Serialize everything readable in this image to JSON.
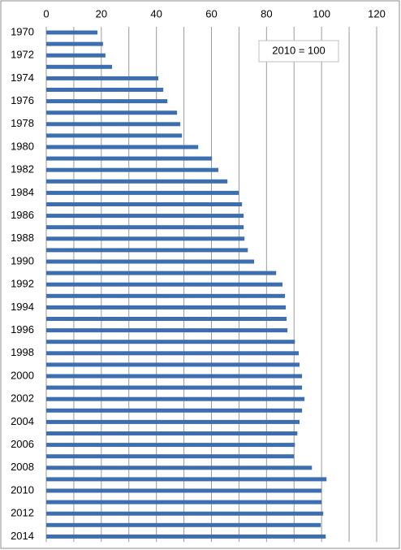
{
  "chart_data": {
    "type": "hbar",
    "annotation": "2010 = 100",
    "categories": [
      "1970",
      null,
      "1972",
      null,
      "1974",
      null,
      "1976",
      null,
      "1978",
      null,
      "1980",
      null,
      "1982",
      null,
      "1984",
      null,
      "1986",
      null,
      "1988",
      null,
      "1990",
      null,
      "1992",
      null,
      "1994",
      null,
      "1996",
      null,
      "1998",
      null,
      "2000",
      null,
      "2002",
      null,
      "2004",
      null,
      "2006",
      null,
      "2008",
      null,
      "2010",
      null,
      "2012",
      null,
      "2014"
    ],
    "values": [
      18.6,
      20.6,
      21.5,
      23.9,
      40.7,
      42.5,
      44.0,
      47.5,
      48.7,
      49.3,
      55.2,
      60.2,
      62.5,
      65.8,
      69.9,
      71.1,
      71.7,
      71.7,
      72.0,
      73.2,
      75.5,
      83.5,
      85.8,
      86.7,
      87.0,
      87.3,
      87.6,
      90.3,
      91.7,
      92.0,
      92.9,
      92.9,
      93.8,
      92.9,
      92.0,
      91.2,
      90.3,
      90.0,
      96.5,
      101.8,
      100.0,
      100.0,
      100.6,
      99.7,
      101.5
    ],
    "color": "#3d6fb0",
    "xlim": [
      0,
      120
    ],
    "xticks": [
      0,
      20,
      40,
      60,
      80,
      100,
      120
    ],
    "minor_xgrid": [
      10,
      30,
      50,
      70,
      90,
      110
    ],
    "grid": true
  }
}
